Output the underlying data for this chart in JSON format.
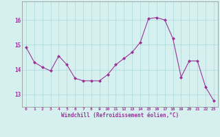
{
  "x": [
    0,
    1,
    2,
    3,
    4,
    5,
    6,
    7,
    8,
    9,
    10,
    11,
    12,
    13,
    14,
    15,
    16,
    17,
    18,
    19,
    20,
    21,
    22,
    23
  ],
  "y": [
    14.9,
    14.3,
    14.1,
    13.95,
    14.55,
    14.2,
    13.65,
    13.55,
    13.55,
    13.55,
    13.8,
    14.2,
    14.45,
    14.7,
    15.1,
    16.05,
    16.1,
    16.0,
    15.25,
    13.7,
    14.35,
    14.35,
    13.3,
    12.75
  ],
  "line_color": "#993399",
  "marker": "D",
  "marker_size": 2.0,
  "bg_color": "#d6f0f0",
  "grid_color": "#aad8d8",
  "xlabel": "Windchill (Refroidissement éolien,°C)",
  "xlabel_color": "#993399",
  "tick_color": "#993399",
  "ylim": [
    12.5,
    16.75
  ],
  "yticks": [
    13,
    14,
    15,
    16
  ],
  "xlim": [
    -0.5,
    23.5
  ],
  "xticks": [
    0,
    1,
    2,
    3,
    4,
    5,
    6,
    7,
    8,
    9,
    10,
    11,
    12,
    13,
    14,
    15,
    16,
    17,
    18,
    19,
    20,
    21,
    22,
    23
  ],
  "spine_color": "#888888",
  "line_width": 0.8
}
